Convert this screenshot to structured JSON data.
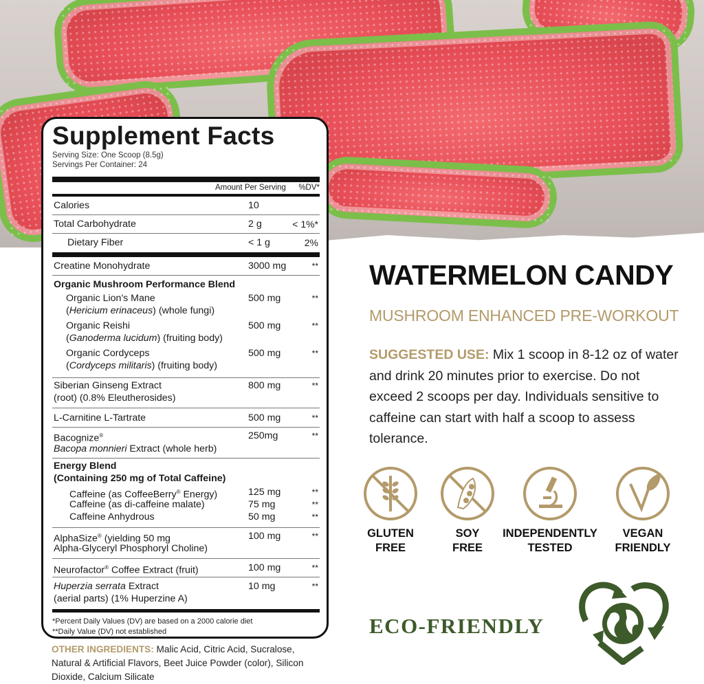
{
  "facts": {
    "title": "Supplement Facts",
    "serving_size": "Serving Size: One Scoop (8.5g)",
    "servings_per_container": "Servings Per Container: 24",
    "amount_header": "Amount Per Serving",
    "dv_header": "%DV*",
    "calories": {
      "name": "Calories",
      "amount": "10"
    },
    "carb": {
      "name": "Total Carbohydrate",
      "amount": "2 g",
      "dv": "< 1%*"
    },
    "fiber": {
      "name": "Dietary Fiber",
      "amount": "< 1 g",
      "dv": "2%"
    },
    "creatine": {
      "name": "Creatine Monohydrate",
      "amount": "3000 mg",
      "dv": "**"
    },
    "mushroom": {
      "title": "Organic Mushroom Performance Blend",
      "items": [
        {
          "name": "Organic Lion's Mane",
          "latin": "Hericium erinaceus",
          "rest": " (whole fungi)",
          "amount": "500 mg",
          "dv": "**"
        },
        {
          "name": "Organic Reishi",
          "latin": "Ganoderma lucidum",
          "rest": " (fruiting body)",
          "amount": "500 mg",
          "dv": "**"
        },
        {
          "name": "Organic Cordyceps",
          "latin": "Cordyceps militaris",
          "rest": " (fruiting body)",
          "amount": "500 mg",
          "dv": "**"
        }
      ]
    },
    "ginseng": {
      "name": "Siberian Ginseng Extract",
      "line2": "(root) (0.8% Eleutherosides)",
      "amount": "800 mg",
      "dv": "**"
    },
    "carnitine": {
      "name": "L-Carnitine L-Tartrate",
      "amount": "500 mg",
      "dv": "**"
    },
    "bacognize": {
      "name": "Bacognize",
      "latin": "Bacopa monnieri",
      "rest": " Extract (whole herb)",
      "amount": "250mg",
      "dv": "**"
    },
    "energy": {
      "title": "Energy Blend",
      "subtitle": "(Containing 250 mg of Total Caffeine)",
      "items": [
        {
          "name": "Caffeine (as CoffeeBerry",
          "name_end": " Energy)",
          "amount": "125 mg",
          "dv": "**"
        },
        {
          "name": "Caffeine (as di-caffeine malate)",
          "amount": "75 mg",
          "dv": "**"
        },
        {
          "name": "Caffeine Anhydrous",
          "amount": "50 mg",
          "dv": "**"
        }
      ]
    },
    "alphasize": {
      "name": "AlphaSize",
      "name_end": " (yielding 50 mg",
      "line2": "Alpha-Glyceryl Phosphoryl Choline)",
      "amount": "100 mg",
      "dv": "**"
    },
    "neurofactor": {
      "name": "Neurofactor",
      "name_end": " Coffee Extract (fruit)",
      "amount": "100 mg",
      "dv": "**"
    },
    "huperzia": {
      "latin": "Huperzia serrata",
      "rest": " Extract",
      "line2": "(aerial parts) (1% Huperzine A)",
      "amount": "10 mg",
      "dv": "**"
    },
    "reg": "®",
    "footnote1": "*Percent Daily Values (DV) are based on a 2000 calorie diet",
    "footnote2": "**Daily Value (DV) not established"
  },
  "other_ingredients": {
    "label": "OTHER INGREDIENTS:",
    "text": " Malic Acid, Citric Acid, Sucralose, Natural & Artificial Flavors, Beet Juice Powder (color), Silicon Dioxide, Calcium Silicate"
  },
  "product": {
    "name": "WATERMELON CANDY",
    "tagline": "MUSHROOM ENHANCED PRE-WORKOUT"
  },
  "suggested_use": {
    "label": "SUGGESTED USE:",
    "text": " Mix 1 scoop in 8-12 oz of water and drink 20 minutes prior to exercise. Do not exceed 2 scoops per day. Individuals sensitive to caffeine can start with half a scoop to assess tolerance."
  },
  "badges": [
    {
      "icon": "wheat-crossed-icon",
      "line1": "GLUTEN",
      "line2": "FREE"
    },
    {
      "icon": "soybean-crossed-icon",
      "line1": "SOY",
      "line2": "FREE"
    },
    {
      "icon": "microscope-icon",
      "line1": "INDEPENDENTLY",
      "line2": "TESTED"
    },
    {
      "icon": "vegan-leaf-icon",
      "line1": "VEGAN",
      "line2": "FRIENDLY"
    }
  ],
  "eco": {
    "label": "ECO-FRIENDLY",
    "icon": "recycle-heart-globe-icon"
  },
  "colors": {
    "gold": "#b39a6a",
    "eco_green": "#3d5a2a",
    "candy_red": "#e84e57",
    "candy_green": "#7bbf4a"
  }
}
